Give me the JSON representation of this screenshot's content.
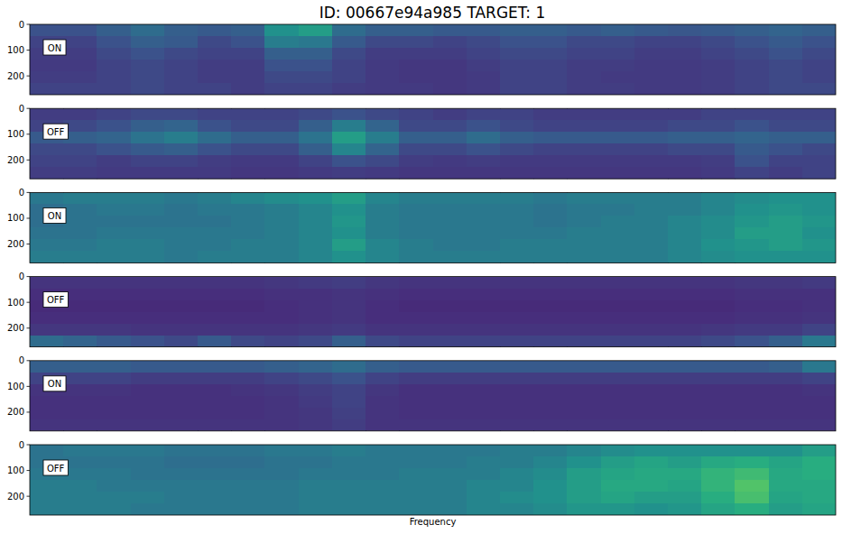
{
  "chart_data": {
    "type": "heatmap",
    "title": "ID: 00667e94a985  TARGET: 1",
    "xlabel": "Frequency",
    "color": "viridis",
    "color_range": [
      0,
      1
    ],
    "ylim": [
      0,
      273
    ],
    "yticks": [
      0,
      100,
      200
    ],
    "tick_labels": "y",
    "panels": [
      {
        "label": "ON",
        "cells": [
          [
            0.25,
            0.25,
            0.3,
            0.35,
            0.3,
            0.28,
            0.3,
            0.5,
            0.55,
            0.35,
            0.3,
            0.3,
            0.28,
            0.28,
            0.3,
            0.3,
            0.28,
            0.3,
            0.28,
            0.27,
            0.28,
            0.3,
            0.32,
            0.3
          ],
          [
            0.2,
            0.2,
            0.25,
            0.3,
            0.28,
            0.22,
            0.25,
            0.42,
            0.4,
            0.28,
            0.22,
            0.22,
            0.2,
            0.22,
            0.25,
            0.25,
            0.22,
            0.22,
            0.2,
            0.2,
            0.22,
            0.25,
            0.28,
            0.25
          ],
          [
            0.18,
            0.18,
            0.22,
            0.25,
            0.22,
            0.2,
            0.2,
            0.3,
            0.3,
            0.22,
            0.18,
            0.18,
            0.18,
            0.2,
            0.22,
            0.22,
            0.2,
            0.2,
            0.18,
            0.18,
            0.2,
            0.22,
            0.25,
            0.22
          ],
          [
            0.17,
            0.17,
            0.2,
            0.22,
            0.2,
            0.18,
            0.18,
            0.25,
            0.25,
            0.2,
            0.17,
            0.16,
            0.16,
            0.18,
            0.2,
            0.2,
            0.18,
            0.18,
            0.17,
            0.17,
            0.18,
            0.2,
            0.22,
            0.2
          ],
          [
            0.18,
            0.18,
            0.2,
            0.22,
            0.2,
            0.18,
            0.18,
            0.22,
            0.22,
            0.2,
            0.17,
            0.16,
            0.16,
            0.17,
            0.2,
            0.2,
            0.18,
            0.17,
            0.17,
            0.17,
            0.18,
            0.2,
            0.22,
            0.2
          ],
          [
            0.2,
            0.2,
            0.2,
            0.22,
            0.2,
            0.2,
            0.18,
            0.2,
            0.2,
            0.18,
            0.17,
            0.17,
            0.16,
            0.17,
            0.2,
            0.2,
            0.18,
            0.18,
            0.17,
            0.17,
            0.18,
            0.2,
            0.22,
            0.22
          ]
        ]
      },
      {
        "label": "OFF",
        "cells": [
          [
            0.18,
            0.18,
            0.2,
            0.22,
            0.22,
            0.2,
            0.2,
            0.2,
            0.22,
            0.25,
            0.22,
            0.2,
            0.18,
            0.2,
            0.2,
            0.18,
            0.18,
            0.18,
            0.18,
            0.18,
            0.2,
            0.2,
            0.2,
            0.2
          ],
          [
            0.2,
            0.22,
            0.25,
            0.3,
            0.32,
            0.25,
            0.22,
            0.22,
            0.3,
            0.42,
            0.32,
            0.22,
            0.22,
            0.25,
            0.22,
            0.2,
            0.2,
            0.2,
            0.2,
            0.22,
            0.22,
            0.25,
            0.22,
            0.22
          ],
          [
            0.28,
            0.3,
            0.32,
            0.38,
            0.42,
            0.35,
            0.3,
            0.3,
            0.38,
            0.55,
            0.42,
            0.3,
            0.3,
            0.35,
            0.3,
            0.28,
            0.28,
            0.28,
            0.28,
            0.3,
            0.3,
            0.32,
            0.3,
            0.3
          ],
          [
            0.22,
            0.22,
            0.25,
            0.28,
            0.3,
            0.25,
            0.22,
            0.22,
            0.3,
            0.45,
            0.32,
            0.22,
            0.22,
            0.25,
            0.22,
            0.2,
            0.2,
            0.2,
            0.2,
            0.22,
            0.22,
            0.28,
            0.25,
            0.22
          ],
          [
            0.2,
            0.2,
            0.18,
            0.2,
            0.2,
            0.18,
            0.17,
            0.17,
            0.2,
            0.25,
            0.22,
            0.18,
            0.17,
            0.18,
            0.17,
            0.17,
            0.17,
            0.17,
            0.17,
            0.17,
            0.18,
            0.25,
            0.2,
            0.2
          ],
          [
            0.18,
            0.18,
            0.17,
            0.17,
            0.17,
            0.17,
            0.16,
            0.16,
            0.17,
            0.18,
            0.17,
            0.16,
            0.16,
            0.16,
            0.16,
            0.16,
            0.16,
            0.16,
            0.16,
            0.16,
            0.17,
            0.2,
            0.18,
            0.2
          ]
        ]
      },
      {
        "label": "ON",
        "cells": [
          [
            0.4,
            0.42,
            0.42,
            0.42,
            0.4,
            0.42,
            0.45,
            0.48,
            0.5,
            0.55,
            0.45,
            0.42,
            0.42,
            0.42,
            0.42,
            0.4,
            0.42,
            0.42,
            0.42,
            0.42,
            0.45,
            0.48,
            0.5,
            0.5
          ],
          [
            0.36,
            0.38,
            0.4,
            0.4,
            0.38,
            0.4,
            0.4,
            0.42,
            0.45,
            0.5,
            0.42,
            0.4,
            0.4,
            0.4,
            0.4,
            0.38,
            0.4,
            0.4,
            0.42,
            0.42,
            0.45,
            0.5,
            0.52,
            0.5
          ],
          [
            0.36,
            0.38,
            0.38,
            0.38,
            0.38,
            0.38,
            0.4,
            0.42,
            0.45,
            0.52,
            0.42,
            0.4,
            0.4,
            0.4,
            0.4,
            0.38,
            0.4,
            0.42,
            0.42,
            0.45,
            0.48,
            0.52,
            0.55,
            0.52
          ],
          [
            0.38,
            0.38,
            0.4,
            0.4,
            0.4,
            0.4,
            0.4,
            0.42,
            0.45,
            0.5,
            0.42,
            0.4,
            0.4,
            0.4,
            0.4,
            0.4,
            0.42,
            0.42,
            0.42,
            0.45,
            0.48,
            0.55,
            0.55,
            0.5
          ],
          [
            0.4,
            0.4,
            0.42,
            0.42,
            0.4,
            0.4,
            0.42,
            0.42,
            0.45,
            0.55,
            0.45,
            0.42,
            0.4,
            0.4,
            0.42,
            0.42,
            0.42,
            0.42,
            0.42,
            0.45,
            0.5,
            0.52,
            0.55,
            0.52
          ],
          [
            0.42,
            0.42,
            0.42,
            0.42,
            0.4,
            0.42,
            0.42,
            0.42,
            0.45,
            0.5,
            0.45,
            0.42,
            0.42,
            0.42,
            0.42,
            0.42,
            0.42,
            0.42,
            0.42,
            0.45,
            0.48,
            0.5,
            0.5,
            0.5
          ]
        ]
      },
      {
        "label": "OFF",
        "cells": [
          [
            0.15,
            0.15,
            0.15,
            0.15,
            0.15,
            0.15,
            0.15,
            0.16,
            0.17,
            0.18,
            0.16,
            0.15,
            0.15,
            0.15,
            0.15,
            0.15,
            0.15,
            0.15,
            0.15,
            0.15,
            0.15,
            0.16,
            0.16,
            0.17
          ],
          [
            0.13,
            0.13,
            0.13,
            0.13,
            0.13,
            0.13,
            0.13,
            0.14,
            0.14,
            0.15,
            0.14,
            0.13,
            0.13,
            0.13,
            0.13,
            0.13,
            0.13,
            0.13,
            0.13,
            0.13,
            0.13,
            0.14,
            0.14,
            0.14
          ],
          [
            0.12,
            0.12,
            0.12,
            0.12,
            0.12,
            0.12,
            0.12,
            0.13,
            0.14,
            0.15,
            0.13,
            0.12,
            0.12,
            0.12,
            0.12,
            0.12,
            0.12,
            0.12,
            0.12,
            0.12,
            0.12,
            0.13,
            0.13,
            0.14
          ],
          [
            0.13,
            0.13,
            0.13,
            0.13,
            0.13,
            0.13,
            0.13,
            0.13,
            0.14,
            0.15,
            0.13,
            0.13,
            0.13,
            0.13,
            0.13,
            0.13,
            0.13,
            0.13,
            0.13,
            0.13,
            0.13,
            0.14,
            0.14,
            0.15
          ],
          [
            0.16,
            0.16,
            0.16,
            0.15,
            0.15,
            0.15,
            0.15,
            0.15,
            0.16,
            0.17,
            0.15,
            0.15,
            0.15,
            0.15,
            0.15,
            0.15,
            0.15,
            0.15,
            0.15,
            0.15,
            0.16,
            0.17,
            0.17,
            0.2
          ],
          [
            0.35,
            0.32,
            0.28,
            0.25,
            0.22,
            0.28,
            0.22,
            0.2,
            0.22,
            0.3,
            0.22,
            0.2,
            0.2,
            0.2,
            0.2,
            0.2,
            0.2,
            0.2,
            0.2,
            0.2,
            0.22,
            0.25,
            0.3,
            0.4
          ]
        ]
      },
      {
        "label": "ON",
        "cells": [
          [
            0.3,
            0.3,
            0.3,
            0.28,
            0.28,
            0.28,
            0.28,
            0.3,
            0.32,
            0.35,
            0.3,
            0.28,
            0.28,
            0.28,
            0.28,
            0.28,
            0.28,
            0.28,
            0.28,
            0.28,
            0.28,
            0.28,
            0.3,
            0.4
          ],
          [
            0.2,
            0.2,
            0.2,
            0.18,
            0.18,
            0.18,
            0.18,
            0.2,
            0.22,
            0.25,
            0.2,
            0.18,
            0.18,
            0.18,
            0.18,
            0.18,
            0.18,
            0.18,
            0.18,
            0.18,
            0.18,
            0.18,
            0.18,
            0.2
          ],
          [
            0.15,
            0.15,
            0.15,
            0.14,
            0.14,
            0.14,
            0.15,
            0.16,
            0.18,
            0.2,
            0.16,
            0.14,
            0.14,
            0.14,
            0.14,
            0.14,
            0.14,
            0.14,
            0.14,
            0.14,
            0.14,
            0.14,
            0.14,
            0.15
          ],
          [
            0.14,
            0.14,
            0.14,
            0.14,
            0.14,
            0.14,
            0.14,
            0.15,
            0.17,
            0.2,
            0.15,
            0.14,
            0.14,
            0.14,
            0.14,
            0.14,
            0.14,
            0.14,
            0.14,
            0.14,
            0.14,
            0.14,
            0.14,
            0.14
          ],
          [
            0.14,
            0.14,
            0.14,
            0.14,
            0.14,
            0.14,
            0.14,
            0.15,
            0.16,
            0.19,
            0.15,
            0.14,
            0.14,
            0.14,
            0.14,
            0.14,
            0.14,
            0.14,
            0.14,
            0.14,
            0.14,
            0.14,
            0.14,
            0.14
          ],
          [
            0.15,
            0.15,
            0.15,
            0.15,
            0.15,
            0.15,
            0.15,
            0.15,
            0.16,
            0.18,
            0.15,
            0.15,
            0.15,
            0.15,
            0.15,
            0.15,
            0.15,
            0.15,
            0.15,
            0.15,
            0.15,
            0.15,
            0.15,
            0.15
          ]
        ]
      },
      {
        "label": "OFF",
        "cells": [
          [
            0.38,
            0.4,
            0.4,
            0.4,
            0.38,
            0.38,
            0.38,
            0.4,
            0.4,
            0.42,
            0.4,
            0.4,
            0.4,
            0.4,
            0.42,
            0.42,
            0.45,
            0.48,
            0.5,
            0.5,
            0.5,
            0.5,
            0.5,
            0.55
          ],
          [
            0.38,
            0.38,
            0.38,
            0.38,
            0.36,
            0.36,
            0.36,
            0.38,
            0.38,
            0.4,
            0.4,
            0.4,
            0.4,
            0.42,
            0.42,
            0.45,
            0.5,
            0.55,
            0.58,
            0.55,
            0.6,
            0.62,
            0.58,
            0.62
          ],
          [
            0.4,
            0.4,
            0.4,
            0.38,
            0.38,
            0.38,
            0.38,
            0.38,
            0.4,
            0.4,
            0.4,
            0.42,
            0.42,
            0.42,
            0.45,
            0.48,
            0.55,
            0.58,
            0.6,
            0.6,
            0.65,
            0.68,
            0.6,
            0.62
          ],
          [
            0.42,
            0.42,
            0.4,
            0.4,
            0.4,
            0.4,
            0.4,
            0.4,
            0.42,
            0.42,
            0.42,
            0.42,
            0.42,
            0.45,
            0.45,
            0.5,
            0.55,
            0.6,
            0.6,
            0.58,
            0.65,
            0.72,
            0.6,
            0.6
          ],
          [
            0.42,
            0.42,
            0.42,
            0.42,
            0.4,
            0.4,
            0.4,
            0.4,
            0.42,
            0.42,
            0.42,
            0.42,
            0.42,
            0.45,
            0.48,
            0.5,
            0.55,
            0.58,
            0.55,
            0.55,
            0.62,
            0.7,
            0.58,
            0.6
          ],
          [
            0.42,
            0.42,
            0.42,
            0.4,
            0.4,
            0.4,
            0.4,
            0.4,
            0.42,
            0.42,
            0.42,
            0.42,
            0.42,
            0.45,
            0.45,
            0.48,
            0.52,
            0.52,
            0.5,
            0.52,
            0.58,
            0.62,
            0.55,
            0.58
          ]
        ]
      }
    ]
  }
}
